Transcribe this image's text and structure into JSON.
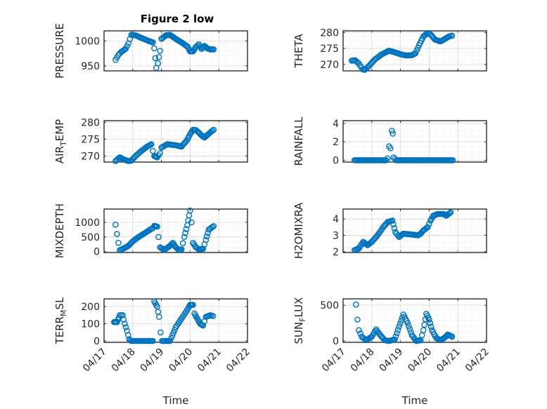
{
  "chart_data": [
    {
      "type": "scatter",
      "title": "Figure 2 low",
      "ylabel_main": "PRESSURE",
      "ylabel_sub": "",
      "yticks": [
        "950",
        "1000"
      ],
      "yticks_v": [
        950,
        1000
      ],
      "ylim": [
        940,
        1020
      ],
      "xlim": [
        0,
        5
      ],
      "xticks": [],
      "xlabel": "",
      "color": "#0072BD",
      "knots": [
        [
          0.4,
          962
        ],
        [
          0.5,
          972
        ],
        [
          0.6,
          978
        ],
        [
          0.75,
          984
        ],
        [
          0.85,
          995
        ],
        [
          0.95,
          1012
        ],
        [
          1.1,
          1011
        ],
        [
          1.3,
          1006
        ],
        [
          1.55,
          1000
        ],
        [
          1.7,
          997
        ],
        [
          1.75,
          985
        ],
        [
          1.82,
          946
        ],
        [
          1.88,
          955
        ],
        [
          1.95,
          980
        ],
        [
          2.0,
          1004
        ],
        [
          2.15,
          1011
        ],
        [
          2.3,
          1012
        ],
        [
          2.5,
          1004
        ],
        [
          2.7,
          997
        ],
        [
          2.9,
          989
        ],
        [
          3.0,
          979
        ],
        [
          3.1,
          979
        ],
        [
          3.2,
          988
        ],
        [
          3.3,
          993
        ],
        [
          3.4,
          984
        ],
        [
          3.5,
          990
        ],
        [
          3.6,
          985
        ],
        [
          3.7,
          983
        ],
        [
          3.82,
          983
        ]
      ]
    },
    {
      "type": "scatter",
      "title": "",
      "ylabel_main": "THETA",
      "ylabel_sub": "",
      "yticks": [
        "270",
        "275",
        "280"
      ],
      "yticks_v": [
        270,
        275,
        280
      ],
      "ylim": [
        268,
        280.5
      ],
      "xlim": [
        0,
        5
      ],
      "xticks": [],
      "xlabel": "",
      "color": "#0072BD",
      "knots": [
        [
          0.3,
          271.2
        ],
        [
          0.42,
          271.3
        ],
        [
          0.55,
          270.3
        ],
        [
          0.68,
          268.5
        ],
        [
          0.75,
          268.3
        ],
        [
          0.9,
          269.5
        ],
        [
          1.1,
          271.5
        ],
        [
          1.35,
          273.2
        ],
        [
          1.6,
          274.3
        ],
        [
          1.8,
          273.8
        ],
        [
          2.0,
          273.2
        ],
        [
          2.2,
          272.8
        ],
        [
          2.4,
          272.9
        ],
        [
          2.52,
          273.5
        ],
        [
          2.65,
          276.0
        ],
        [
          2.8,
          278.8
        ],
        [
          2.95,
          279.8
        ],
        [
          3.05,
          279.4
        ],
        [
          3.2,
          277.8
        ],
        [
          3.4,
          277.2
        ],
        [
          3.55,
          278.0
        ],
        [
          3.7,
          278.8
        ],
        [
          3.8,
          279.0
        ]
      ]
    },
    {
      "type": "scatter",
      "title": "",
      "ylabel_main": "AIR",
      "ylabel_sub": "T",
      "ylabel_post": "EMP",
      "yticks": [
        "270",
        "275",
        "280"
      ],
      "yticks_v": [
        270,
        275,
        280
      ],
      "ylim": [
        268.2,
        280.5
      ],
      "xlim": [
        0,
        5
      ],
      "xticks": [],
      "xlabel": "",
      "color": "#0072BD",
      "knots": [
        [
          0.4,
          268.5
        ],
        [
          0.55,
          269.6
        ],
        [
          0.7,
          268.9
        ],
        [
          0.85,
          268.5
        ],
        [
          0.95,
          268.6
        ],
        [
          1.1,
          270.0
        ],
        [
          1.3,
          271.5
        ],
        [
          1.5,
          272.8
        ],
        [
          1.65,
          273.5
        ],
        [
          1.7,
          271.5
        ],
        [
          1.75,
          270.0
        ],
        [
          1.85,
          269.6
        ],
        [
          1.95,
          270.8
        ],
        [
          2.0,
          272.5
        ],
        [
          2.2,
          273.5
        ],
        [
          2.5,
          273.2
        ],
        [
          2.7,
          272.8
        ],
        [
          2.9,
          274.8
        ],
        [
          3.0,
          276.5
        ],
        [
          3.1,
          277.8
        ],
        [
          3.2,
          277.7
        ],
        [
          3.3,
          277.0
        ],
        [
          3.4,
          276.1
        ],
        [
          3.5,
          275.5
        ],
        [
          3.6,
          276.2
        ],
        [
          3.7,
          277.0
        ],
        [
          3.82,
          277.8
        ]
      ]
    },
    {
      "type": "scatter",
      "title": "",
      "ylabel_main": "RAINFALL",
      "ylabel_sub": "",
      "yticks": [
        "0",
        "2",
        "4"
      ],
      "yticks_v": [
        0,
        2,
        4
      ],
      "ylim": [
        -0.2,
        4.3
      ],
      "xlim": [
        0,
        5
      ],
      "xticks": [],
      "xlabel": "",
      "color": "#0072BD",
      "knots": [
        [
          0.4,
          0
        ],
        [
          1.3,
          0
        ],
        [
          1.5,
          0
        ],
        [
          1.55,
          0.2
        ],
        [
          1.6,
          1.5
        ],
        [
          1.65,
          1.3
        ],
        [
          1.7,
          3.2
        ],
        [
          1.73,
          2.9
        ],
        [
          1.76,
          0.3
        ],
        [
          1.85,
          0
        ],
        [
          2.5,
          0
        ],
        [
          3.0,
          0
        ],
        [
          3.5,
          0
        ],
        [
          3.82,
          0
        ]
      ]
    },
    {
      "type": "scatter",
      "title": "",
      "ylabel_main": "MIXDEPTH",
      "ylabel_sub": "",
      "yticks": [
        "0",
        "500",
        "1000"
      ],
      "yticks_v": [
        0,
        500,
        1000
      ],
      "ylim": [
        -30,
        1450
      ],
      "xlim": [
        0,
        5
      ],
      "xticks": [],
      "xlabel": "",
      "color": "#0072BD",
      "knots": [
        [
          0.4,
          920
        ],
        [
          0.45,
          600
        ],
        [
          0.5,
          300
        ],
        [
          0.55,
          50
        ],
        [
          0.7,
          120
        ],
        [
          0.85,
          200
        ],
        [
          1.0,
          350
        ],
        [
          1.2,
          500
        ],
        [
          1.45,
          650
        ],
        [
          1.6,
          750
        ],
        [
          1.7,
          800
        ],
        [
          1.75,
          880
        ],
        [
          1.85,
          850
        ],
        [
          1.9,
          500
        ],
        [
          1.95,
          150
        ],
        [
          2.1,
          60
        ],
        [
          2.3,
          200
        ],
        [
          2.4,
          300
        ],
        [
          2.5,
          150
        ],
        [
          2.6,
          60
        ],
        [
          2.7,
          80
        ],
        [
          2.8,
          500
        ],
        [
          2.9,
          900
        ],
        [
          3.0,
          1400
        ],
        [
          3.05,
          1000
        ],
        [
          3.1,
          300
        ],
        [
          3.2,
          150
        ],
        [
          3.3,
          80
        ],
        [
          3.45,
          100
        ],
        [
          3.55,
          400
        ],
        [
          3.65,
          750
        ],
        [
          3.82,
          870
        ]
      ]
    },
    {
      "type": "scatter",
      "title": "",
      "ylabel_main": "H2OMIXRA",
      "ylabel_sub": "",
      "yticks": [
        "2",
        "3",
        "4"
      ],
      "yticks_v": [
        2,
        3,
        4
      ],
      "ylim": [
        1.95,
        4.6
      ],
      "xlim": [
        0,
        5
      ],
      "xticks": [],
      "xlabel": "",
      "color": "#0072BD",
      "knots": [
        [
          0.4,
          2.1
        ],
        [
          0.55,
          2.2
        ],
        [
          0.7,
          2.6
        ],
        [
          0.85,
          2.4
        ],
        [
          1.0,
          2.6
        ],
        [
          1.2,
          3.0
        ],
        [
          1.4,
          3.5
        ],
        [
          1.55,
          3.8
        ],
        [
          1.72,
          3.9
        ],
        [
          1.82,
          3.2
        ],
        [
          1.95,
          2.9
        ],
        [
          2.1,
          3.1
        ],
        [
          2.4,
          3.05
        ],
        [
          2.6,
          3.0
        ],
        [
          2.7,
          3.1
        ],
        [
          2.8,
          3.3
        ],
        [
          2.95,
          3.5
        ],
        [
          3.05,
          3.9
        ],
        [
          3.15,
          4.2
        ],
        [
          3.3,
          4.3
        ],
        [
          3.5,
          4.3
        ],
        [
          3.6,
          4.2
        ],
        [
          3.75,
          4.4
        ]
      ]
    },
    {
      "type": "scatter",
      "title": "",
      "ylabel_main": "TERR",
      "ylabel_sub": "M",
      "ylabel_post": "SL",
      "yticks": [
        "0",
        "100",
        "200"
      ],
      "yticks_v": [
        0,
        100,
        200
      ],
      "ylim": [
        -8,
        245
      ],
      "xlim": [
        0,
        5
      ],
      "xticks": [
        "04/17",
        "04/18",
        "04/19",
        "04/20",
        "04/21",
        "04/22"
      ],
      "xticks_v": [
        0,
        1,
        2,
        3,
        4,
        5
      ],
      "xlabel": "Time",
      "color": "#0072BD",
      "knots": [
        [
          0.35,
          110
        ],
        [
          0.45,
          110
        ],
        [
          0.55,
          150
        ],
        [
          0.65,
          150
        ],
        [
          0.72,
          100
        ],
        [
          0.8,
          60
        ],
        [
          0.88,
          10
        ],
        [
          0.95,
          0
        ],
        [
          1.3,
          0
        ],
        [
          1.55,
          0
        ],
        [
          1.7,
          0
        ],
        [
          1.75,
          230
        ],
        [
          1.85,
          200
        ],
        [
          1.92,
          140
        ],
        [
          1.97,
          50
        ],
        [
          2.02,
          0
        ],
        [
          2.3,
          0
        ],
        [
          2.5,
          80
        ],
        [
          2.7,
          130
        ],
        [
          2.9,
          180
        ],
        [
          3.0,
          210
        ],
        [
          3.1,
          210
        ],
        [
          3.15,
          160
        ],
        [
          3.25,
          130
        ],
        [
          3.35,
          100
        ],
        [
          3.45,
          90
        ],
        [
          3.55,
          140
        ],
        [
          3.7,
          150
        ],
        [
          3.8,
          145
        ]
      ]
    },
    {
      "type": "scatter",
      "title": "",
      "ylabel_main": "SUN",
      "ylabel_sub": "F",
      "ylabel_post": "LUX",
      "yticks": [
        "0",
        "500"
      ],
      "yticks_v": [
        0,
        500
      ],
      "ylim": [
        -20,
        590
      ],
      "xlim": [
        0,
        5
      ],
      "xticks": [
        "04/17",
        "04/18",
        "04/19",
        "04/20",
        "04/21",
        "04/22"
      ],
      "xticks_v": [
        0,
        1,
        2,
        3,
        4,
        5
      ],
      "xlabel": "Time",
      "color": "#0072BD",
      "knots": [
        [
          0.45,
          510
        ],
        [
          0.5,
          300
        ],
        [
          0.55,
          150
        ],
        [
          0.65,
          60
        ],
        [
          0.8,
          10
        ],
        [
          1.0,
          60
        ],
        [
          1.15,
          160
        ],
        [
          1.3,
          80
        ],
        [
          1.45,
          10
        ],
        [
          1.6,
          0
        ],
        [
          1.8,
          20
        ],
        [
          1.95,
          200
        ],
        [
          2.1,
          370
        ],
        [
          2.25,
          250
        ],
        [
          2.4,
          80
        ],
        [
          2.55,
          0
        ],
        [
          2.7,
          10
        ],
        [
          2.8,
          150
        ],
        [
          2.9,
          380
        ],
        [
          3.0,
          300
        ],
        [
          3.1,
          150
        ],
        [
          3.25,
          40
        ],
        [
          3.4,
          10
        ],
        [
          3.55,
          50
        ],
        [
          3.65,
          90
        ],
        [
          3.8,
          60
        ]
      ]
    }
  ]
}
